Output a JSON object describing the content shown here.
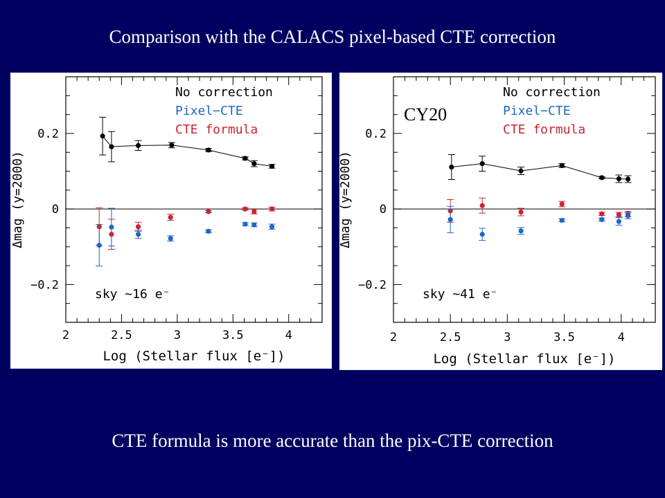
{
  "slide": {
    "title": "Comparison with the CALACS pixel-based CTE correction",
    "footer": "CTE formula is more accurate than the pix-CTE correction"
  },
  "colors": {
    "background": "#000060",
    "no_correction": "#000000",
    "pixel_cte": "#1e66c8",
    "cte_formula": "#cc2233"
  },
  "chart_data": [
    {
      "type": "scatter",
      "panel_label": "",
      "annotation": "sky ~16 e⁻",
      "xlabel": "Log (Stellar flux [e⁻])",
      "ylabel": "Δmag (y=2000)",
      "xlim": [
        2,
        4.3
      ],
      "ylim": [
        -0.3,
        0.35
      ],
      "x_ticks": [
        "2",
        "2.5",
        "3",
        "3.5",
        "4"
      ],
      "y_ticks": [
        "0.2",
        "0",
        "−0.2"
      ],
      "zero_line": true,
      "legend": [
        "No correction",
        "Pixel−CTE",
        "CTE formula"
      ],
      "legend_placement": "top-right",
      "series": [
        {
          "name": "No correction",
          "color": "#000000",
          "connected": true,
          "points": [
            {
              "x": 2.33,
              "y": 0.193,
              "err": 0.05
            },
            {
              "x": 2.41,
              "y": 0.165,
              "err": 0.04
            },
            {
              "x": 2.65,
              "y": 0.168,
              "err": 0.013
            },
            {
              "x": 2.95,
              "y": 0.169,
              "err": 0.007
            },
            {
              "x": 3.28,
              "y": 0.156,
              "err": 0.004
            },
            {
              "x": 3.61,
              "y": 0.134,
              "err": 0.004
            },
            {
              "x": 3.69,
              "y": 0.12,
              "err": 0.008
            },
            {
              "x": 3.85,
              "y": 0.113,
              "err": 0.005
            }
          ]
        },
        {
          "name": "Pixel−CTE",
          "color": "#1e66c8",
          "connected": false,
          "points": [
            {
              "x": 2.3,
              "y": -0.096,
              "err": 0.055
            },
            {
              "x": 2.41,
              "y": -0.048,
              "err": 0.05
            },
            {
              "x": 2.65,
              "y": -0.067,
              "err": 0.011
            },
            {
              "x": 2.94,
              "y": -0.078,
              "err": 0.007
            },
            {
              "x": 3.28,
              "y": -0.059,
              "err": 0.004
            },
            {
              "x": 3.61,
              "y": -0.04,
              "err": 0.004
            },
            {
              "x": 3.69,
              "y": -0.042,
              "err": 0.005
            },
            {
              "x": 3.85,
              "y": -0.047,
              "err": 0.007
            }
          ]
        },
        {
          "name": "CTE formula",
          "color": "#cc2233",
          "connected": false,
          "points": [
            {
              "x": 2.3,
              "y": -0.047,
              "err": 0.05
            },
            {
              "x": 2.41,
              "y": -0.067,
              "err": 0.04
            },
            {
              "x": 2.65,
              "y": -0.047,
              "err": 0.012
            },
            {
              "x": 2.94,
              "y": -0.022,
              "err": 0.008
            },
            {
              "x": 3.28,
              "y": -0.007,
              "err": 0.003
            },
            {
              "x": 3.61,
              "y": 0.0,
              "err": 0.003
            },
            {
              "x": 3.69,
              "y": -0.007,
              "err": 0.006
            },
            {
              "x": 3.85,
              "y": 0.0,
              "err": 0.005
            }
          ]
        }
      ]
    },
    {
      "type": "scatter",
      "panel_label": "CY20",
      "annotation": "sky ~41 e⁻",
      "xlabel": "Log (Stellar flux [e⁻])",
      "ylabel": "Δmag (y=2000)",
      "xlim": [
        2,
        4.3
      ],
      "ylim": [
        -0.3,
        0.35
      ],
      "x_ticks": [
        "2",
        "2.5",
        "3",
        "3.5",
        "4"
      ],
      "y_ticks": [
        "0.2",
        "0",
        "−0.2"
      ],
      "zero_line": true,
      "legend": [
        "No correction",
        "Pixel−CTE",
        "CTE formula"
      ],
      "legend_placement": "top-right",
      "series": [
        {
          "name": "No correction",
          "color": "#000000",
          "connected": true,
          "points": [
            {
              "x": 2.51,
              "y": 0.111,
              "err": 0.033
            },
            {
              "x": 2.78,
              "y": 0.12,
              "err": 0.02
            },
            {
              "x": 3.12,
              "y": 0.101,
              "err": 0.01
            },
            {
              "x": 3.48,
              "y": 0.115,
              "err": 0.005
            },
            {
              "x": 3.83,
              "y": 0.083,
              "err": 0.003
            },
            {
              "x": 3.98,
              "y": 0.08,
              "err": 0.01
            },
            {
              "x": 4.06,
              "y": 0.079,
              "err": 0.009
            }
          ]
        },
        {
          "name": "Pixel−CTE",
          "color": "#1e66c8",
          "connected": false,
          "points": [
            {
              "x": 2.5,
              "y": -0.028,
              "err": 0.035
            },
            {
              "x": 2.78,
              "y": -0.067,
              "err": 0.016
            },
            {
              "x": 3.12,
              "y": -0.058,
              "err": 0.009
            },
            {
              "x": 3.48,
              "y": -0.03,
              "err": 0.004
            },
            {
              "x": 3.83,
              "y": -0.028,
              "err": 0.004
            },
            {
              "x": 3.98,
              "y": -0.033,
              "err": 0.01
            },
            {
              "x": 4.06,
              "y": -0.018,
              "err": 0.008
            }
          ]
        },
        {
          "name": "CTE formula",
          "color": "#cc2233",
          "connected": false,
          "points": [
            {
              "x": 2.5,
              "y": -0.005,
              "err": 0.03
            },
            {
              "x": 2.78,
              "y": 0.009,
              "err": 0.02
            },
            {
              "x": 3.12,
              "y": -0.008,
              "err": 0.01
            },
            {
              "x": 3.48,
              "y": 0.013,
              "err": 0.007
            },
            {
              "x": 3.83,
              "y": -0.013,
              "err": 0.004
            },
            {
              "x": 3.98,
              "y": -0.015,
              "err": 0.006
            },
            {
              "x": 4.06,
              "y": -0.013,
              "err": 0.007
            }
          ]
        }
      ]
    }
  ]
}
